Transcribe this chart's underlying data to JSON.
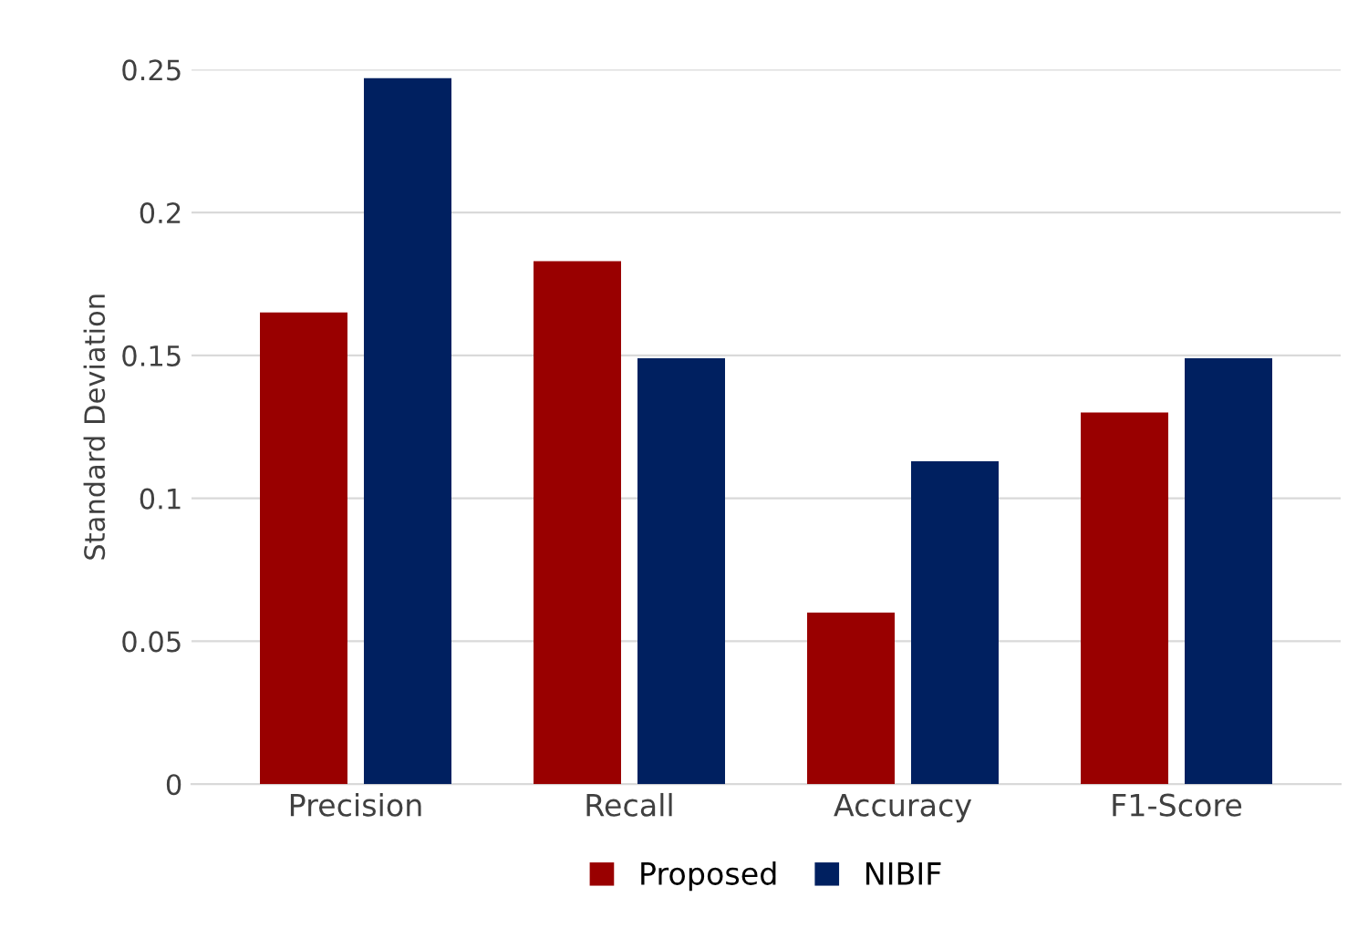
{
  "chart_data": {
    "type": "bar",
    "ylabel": "Standard Deviation",
    "categories": [
      "Precision",
      "Recall",
      "Accuracy",
      "F1-Score"
    ],
    "series": [
      {
        "name": "Proposed",
        "color": "#990000",
        "values": [
          0.165,
          0.183,
          0.06,
          0.13
        ]
      },
      {
        "name": "NIBIF",
        "color": "#002060",
        "values": [
          0.247,
          0.149,
          0.113,
          0.149
        ]
      }
    ],
    "ylim": [
      0,
      0.25
    ],
    "yticks": [
      0,
      0.05,
      0.1,
      0.15,
      0.2,
      0.25
    ],
    "grid": "y",
    "legend": "bottom"
  }
}
